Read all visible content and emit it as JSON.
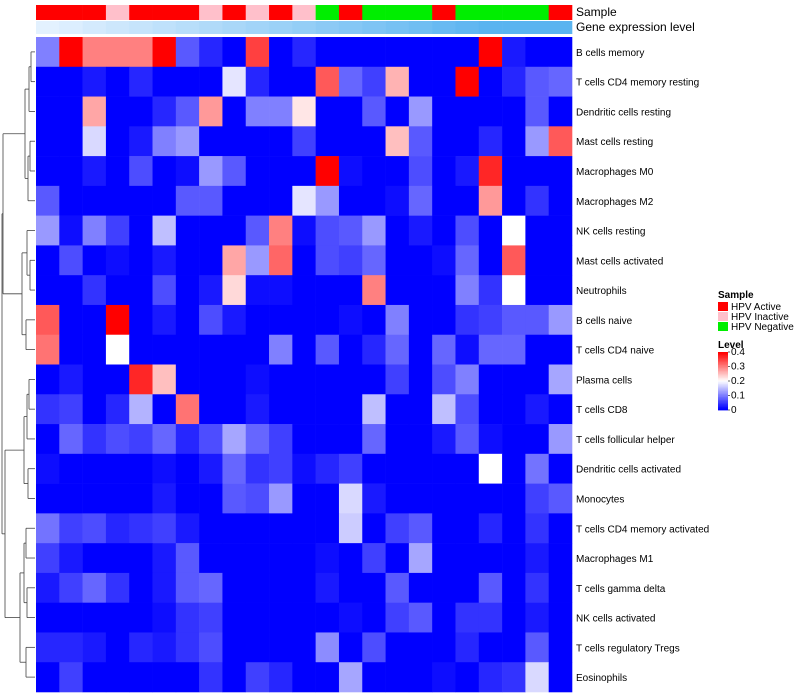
{
  "chart_data": {
    "type": "heatmap",
    "title": "",
    "annotation_labels": {
      "sample": "Sample",
      "gene": "Gene expression level"
    },
    "rows": [
      "B cells memory",
      "T cells CD4 memory resting",
      "Dendritic cells resting",
      "Mast cells resting",
      "Macrophages M0",
      "Macrophages M2",
      "NK cells resting",
      "Mast cells activated",
      "Neutrophils",
      "B cells naive",
      "T cells CD4 naive",
      "Plasma cells",
      "T cells CD8",
      "T cells follicular helper",
      "Dendritic cells activated",
      "Monocytes",
      "T cells CD4 memory activated",
      "Macrophages M1",
      "T cells gamma delta",
      "NK cells activated",
      "T cells regulatory  Tregs",
      "Eosinophils"
    ],
    "sample_groups": [
      "Active",
      "Active",
      "Active",
      "Inactive",
      "Active",
      "Active",
      "Active",
      "Inactive",
      "Active",
      "Inactive",
      "Active",
      "Inactive",
      "Negative",
      "Active",
      "Negative",
      "Negative",
      "Negative",
      "Active",
      "Negative",
      "Negative",
      "Negative",
      "Negative",
      "Active"
    ],
    "gene_expression": [
      0.05,
      0.1,
      0.15,
      0.2,
      0.25,
      0.3,
      0.35,
      0.4,
      0.45,
      0.5,
      0.55,
      0.6,
      0.65,
      0.7,
      0.75,
      0.8,
      0.85,
      0.9,
      0.95,
      1.0,
      1.0,
      1.0,
      1.0
    ],
    "values": [
      [
        0.1,
        0.4,
        0.3,
        0.3,
        0.3,
        0.4,
        0.07,
        0.03,
        0,
        0.35,
        0,
        0.03,
        0,
        0,
        0,
        0,
        0,
        0,
        0,
        0.4,
        0.02,
        0,
        0
      ],
      [
        0,
        0,
        0.02,
        0,
        0.03,
        0,
        0,
        0,
        0.18,
        0.03,
        0,
        0,
        0.33,
        0.08,
        0.05,
        0.26,
        0,
        0,
        0.4,
        0,
        0.03,
        0.07,
        0.08
      ],
      [
        0,
        0,
        0.27,
        0,
        0,
        0.03,
        0.07,
        0.28,
        0,
        0.1,
        0.1,
        0.22,
        0,
        0,
        0.07,
        0,
        0.12,
        0,
        0,
        0,
        0,
        0.07,
        0
      ],
      [
        0,
        0,
        0.17,
        0,
        0.02,
        0.1,
        0.12,
        0,
        0,
        0,
        0,
        0.05,
        0,
        0,
        0,
        0.25,
        0.07,
        0,
        0,
        0.03,
        0,
        0.12,
        0.33
      ],
      [
        0,
        0,
        0.02,
        0,
        0.06,
        0,
        0.01,
        0.12,
        0.07,
        0,
        0,
        0,
        0.4,
        0.01,
        0,
        0,
        0.06,
        0,
        0.02,
        0.37,
        0,
        0,
        0
      ],
      [
        0.07,
        0,
        0,
        0,
        0,
        0,
        0.07,
        0.07,
        0,
        0,
        0,
        0.18,
        0.12,
        0,
        0,
        0.01,
        0.08,
        0,
        0,
        0.28,
        0,
        0.04,
        0
      ],
      [
        0.12,
        0.01,
        0.1,
        0.05,
        0,
        0.15,
        0,
        0,
        0,
        0.07,
        0.3,
        0.01,
        0.06,
        0.07,
        0.12,
        0,
        0.02,
        0,
        0.06,
        0,
        0.2,
        0,
        0
      ],
      [
        0,
        0.06,
        0,
        0.01,
        0,
        0.02,
        0,
        0,
        0.27,
        0.12,
        0.32,
        0,
        0.06,
        0.05,
        0.08,
        0,
        0,
        0.01,
        0.08,
        0,
        0.33,
        0,
        0
      ],
      [
        0,
        0,
        0.04,
        0,
        0,
        0.06,
        0,
        0.02,
        0.23,
        0.01,
        0.01,
        0,
        0,
        0,
        0.3,
        0,
        0,
        0,
        0.1,
        0.04,
        0.2,
        0,
        0
      ],
      [
        0.33,
        0,
        0,
        0.4,
        0,
        0.02,
        0,
        0.06,
        0.02,
        0,
        0,
        0,
        0,
        0.01,
        0,
        0.1,
        0,
        0,
        0.04,
        0.05,
        0.07,
        0.07,
        0.12
      ],
      [
        0.31,
        0,
        0,
        0.2,
        0,
        0,
        0,
        0,
        0,
        0,
        0.1,
        0,
        0.07,
        0,
        0.03,
        0.08,
        0,
        0.08,
        0.01,
        0.08,
        0.08,
        0,
        0
      ],
      [
        0,
        0.02,
        0,
        0,
        0.37,
        0.25,
        0,
        0,
        0,
        0.01,
        0,
        0,
        0,
        0,
        0,
        0.05,
        0,
        0.06,
        0.1,
        0,
        0,
        0,
        0.13
      ],
      [
        0.04,
        0.05,
        0,
        0.03,
        0.14,
        0,
        0.31,
        0,
        0,
        0.02,
        0,
        0,
        0,
        0,
        0.15,
        0,
        0,
        0.15,
        0.06,
        0,
        0,
        0.02,
        0
      ],
      [
        0,
        0.08,
        0.04,
        0.06,
        0.05,
        0.08,
        0.03,
        0.06,
        0.13,
        0.08,
        0.05,
        0,
        0,
        0,
        0.08,
        0,
        0,
        0.02,
        0.07,
        0.01,
        0,
        0,
        0.12
      ],
      [
        0.01,
        0,
        0,
        0,
        0,
        0.01,
        0,
        0.02,
        0.08,
        0.04,
        0.05,
        0.01,
        0.03,
        0.05,
        0,
        0,
        0,
        0,
        0,
        0.2,
        0,
        0.09,
        0
      ],
      [
        0,
        0,
        0,
        0,
        0,
        0.02,
        0,
        0,
        0.07,
        0.06,
        0.12,
        0,
        0,
        0.17,
        0.02,
        0,
        0,
        0,
        0,
        0,
        0,
        0.05,
        0.07
      ],
      [
        0.09,
        0.05,
        0.06,
        0.03,
        0.04,
        0.05,
        0.02,
        0,
        0,
        0,
        0,
        0,
        0,
        0.16,
        0,
        0.05,
        0.07,
        0,
        0,
        0.03,
        0,
        0.04,
        0
      ],
      [
        0.05,
        0.02,
        0,
        0,
        0,
        0.02,
        0.07,
        0,
        0,
        0,
        0,
        0,
        0.01,
        0,
        0.05,
        0,
        0.13,
        0,
        0,
        0,
        0,
        0.02,
        0
      ],
      [
        0.02,
        0.05,
        0.08,
        0.04,
        0,
        0.02,
        0.07,
        0.08,
        0,
        0,
        0,
        0,
        0.02,
        0,
        0,
        0.07,
        0,
        0,
        0,
        0.07,
        0,
        0.04,
        0
      ],
      [
        0,
        0,
        0,
        0,
        0,
        0.01,
        0.04,
        0.05,
        0,
        0,
        0,
        0,
        0,
        0.01,
        0,
        0.05,
        0.07,
        0,
        0.04,
        0.04,
        0,
        0.02,
        0
      ],
      [
        0.03,
        0.03,
        0.02,
        0,
        0.03,
        0.02,
        0.04,
        0.06,
        0,
        0,
        0,
        0,
        0.11,
        0,
        0.06,
        0,
        0,
        0,
        0.03,
        0,
        0,
        0.07,
        0
      ],
      [
        0,
        0.05,
        0,
        0,
        0,
        0,
        0,
        0.04,
        0,
        0.05,
        0.03,
        0,
        0,
        0.13,
        0,
        0,
        0,
        0.01,
        0,
        0.03,
        0.04,
        0.17,
        0
      ]
    ],
    "color_scale": {
      "min": 0,
      "max": 0.4,
      "low": "#0000ff",
      "mid": "#ffffff",
      "high": "#ff0000",
      "mid_value": 0.2
    },
    "legend_sample": {
      "title": "Sample",
      "entries": [
        {
          "key": "Active",
          "label": "HPV Active",
          "color": "#ff0000"
        },
        {
          "key": "Inactive",
          "label": "HPV Inactive",
          "color": "#ffc0cb"
        },
        {
          "key": "Negative",
          "label": "HPV Negative",
          "color": "#00ee00"
        }
      ]
    },
    "legend_level": {
      "title": "Level",
      "ticks": [
        0.4,
        0.3,
        0.2,
        0.1,
        0
      ]
    },
    "gene_colors": {
      "low": "#eaf4ff",
      "high": "#5ab4f0"
    },
    "dendrogram": "hierarchical clustering of rows"
  }
}
